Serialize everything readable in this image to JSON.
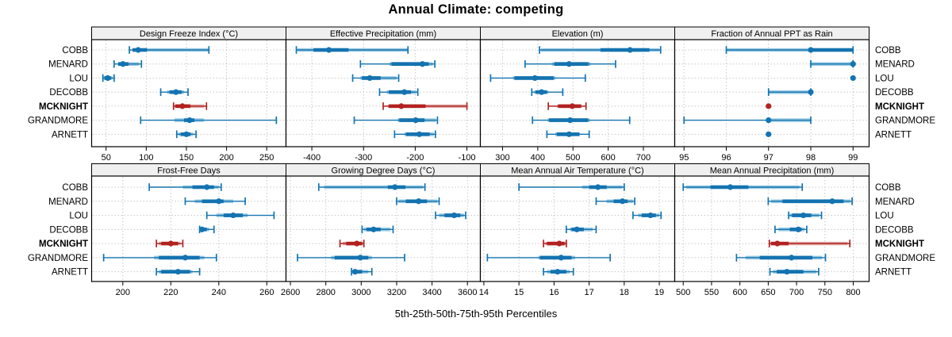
{
  "title": "Annual Climate: competing",
  "xlabel": "5th-25th-50th-75th-95th Percentiles",
  "sites": [
    "COBB",
    "MENARD",
    "LOU",
    "DECOBB",
    "MCKNIGHT",
    "GRANDMORE",
    "ARNETT"
  ],
  "highlight_site": "MCKNIGHT",
  "colors": {
    "main": "#1473B0",
    "light": "#9ACBE3",
    "highlight": "#B22220",
    "highlight_light": "#E0B0AC",
    "strip_bg": "#F0F0F0",
    "grid": "#C8C8C8",
    "border": "#000000",
    "text": "#000000"
  },
  "chart_data": {
    "type": "scatter",
    "style": "percentile-interval-dotplot",
    "legend": "thin capped line = 5th-95th, light band, dark band = 25th-75th, dot = median",
    "panels": [
      {
        "title": "Design Freeze Index (°C)",
        "slug": "design-freeze-index",
        "row": 0,
        "col": 0,
        "xlim": [
          32,
          274
        ],
        "ticks": [
          50,
          100,
          150,
          200,
          250
        ],
        "series": [
          {
            "site": "COBB",
            "q": [
              79,
              83,
              90,
              101,
              178
            ],
            "band": [
              83,
              178
            ]
          },
          {
            "site": "MENARD",
            "q": [
              60,
              65,
              71,
              78,
              94
            ],
            "band": [
              65,
              91
            ]
          },
          {
            "site": "LOU",
            "q": [
              46,
              48,
              52,
              56,
              60
            ],
            "band": [
              47,
              58
            ]
          },
          {
            "site": "DECOBB",
            "q": [
              118,
              129,
              137,
              144,
              152
            ],
            "band": [
              126,
              147
            ]
          },
          {
            "site": "MCKNIGHT",
            "q": [
              134,
              136,
              145,
              155,
              175
            ],
            "band": [
              136,
              172
            ]
          },
          {
            "site": "GRANDMORE",
            "q": [
              93,
              147,
              154,
              160,
              262
            ],
            "band": [
              135,
              172
            ]
          },
          {
            "site": "ARNETT",
            "q": [
              138,
              143,
              150,
              155,
              162
            ],
            "band": [
              140,
              158
            ]
          }
        ]
      },
      {
        "title": "Effective Precipitation (mm)",
        "slug": "effective-precipitation",
        "row": 0,
        "col": 1,
        "xlim": [
          -450,
          -74
        ],
        "ticks": [
          -400,
          -300,
          -200,
          -100
        ],
        "series": [
          {
            "site": "COBB",
            "q": [
              -430,
              -397,
              -367,
              -329,
              -214
            ],
            "band": [
              -428,
              -215
            ]
          },
          {
            "site": "MENARD",
            "q": [
              -306,
              -246,
              -186,
              -174,
              -162
            ],
            "band": [
              -250,
              -166
            ]
          },
          {
            "site": "LOU",
            "q": [
              -321,
              -303,
              -288,
              -267,
              -232
            ],
            "band": [
              -306,
              -236
            ]
          },
          {
            "site": "DECOBB",
            "q": [
              -269,
              -251,
              -221,
              -208,
              -195
            ],
            "band": [
              -255,
              -198
            ]
          },
          {
            "site": "MCKNIGHT",
            "q": [
              -262,
              -251,
              -227,
              -180,
              -100
            ],
            "band": [
              -253,
              -102
            ]
          },
          {
            "site": "GRANDMORE",
            "q": [
              -318,
              -231,
              -199,
              -182,
              -157
            ],
            "band": [
              -234,
              -160
            ]
          },
          {
            "site": "ARNETT",
            "q": [
              -240,
              -218,
              -192,
              -172,
              -161
            ],
            "band": [
              -221,
              -164
            ]
          }
        ]
      },
      {
        "title": "Elevation (m)",
        "slug": "elevation",
        "row": 0,
        "col": 2,
        "xlim": [
          237,
          789
        ],
        "ticks": [
          300,
          400,
          500,
          600,
          700
        ],
        "series": [
          {
            "site": "COBB",
            "q": [
              405,
              578,
              662,
              717,
              749
            ],
            "band": [
              409,
              746
            ]
          },
          {
            "site": "MENARD",
            "q": [
              364,
              447,
              489,
              544,
              621
            ],
            "band": [
              440,
              550
            ]
          },
          {
            "site": "LOU",
            "q": [
              266,
              334,
              392,
              445,
              535
            ],
            "band": [
              330,
              450
            ]
          },
          {
            "site": "DECOBB",
            "q": [
              383,
              394,
              411,
              426,
              471
            ],
            "band": [
              390,
              430
            ]
          },
          {
            "site": "MCKNIGHT",
            "q": [
              430,
              458,
              498,
              523,
              537
            ],
            "band": [
              455,
              525
            ]
          },
          {
            "site": "GRANDMORE",
            "q": [
              385,
              432,
              492,
              543,
              661
            ],
            "band": [
              428,
              548
            ]
          },
          {
            "site": "ARNETT",
            "q": [
              426,
              454,
              489,
              518,
              546
            ],
            "band": [
              450,
              520
            ]
          }
        ]
      },
      {
        "title": "Fraction of Annual PPT as Rain",
        "slug": "fraction-ppt-rain",
        "row": 0,
        "col": 3,
        "xlim": [
          94.78,
          99.38
        ],
        "ticks": [
          95,
          96,
          97,
          98,
          99
        ],
        "series": [
          {
            "site": "COBB",
            "q": [
              96,
              98,
              98,
              99,
              99
            ],
            "band": [
              96,
              99
            ]
          },
          {
            "site": "MENARD",
            "q": [
              98,
              99,
              99,
              99,
              99
            ],
            "band": [
              98,
              99
            ]
          },
          {
            "site": "LOU",
            "q": [
              99,
              99,
              99,
              99,
              99
            ],
            "band": [
              99,
              99
            ]
          },
          {
            "site": "DECOBB",
            "q": [
              97,
              98,
              98,
              98,
              98
            ],
            "band": [
              97,
              98
            ]
          },
          {
            "site": "MCKNIGHT",
            "q": [
              97,
              97,
              97,
              97,
              97
            ],
            "band": [
              97,
              97
            ]
          },
          {
            "site": "GRANDMORE",
            "q": [
              95,
              97,
              97,
              97,
              98
            ],
            "band": [
              97,
              98
            ]
          },
          {
            "site": "ARNETT",
            "q": [
              97,
              97,
              97,
              97,
              97
            ],
            "band": [
              97,
              97
            ]
          }
        ]
      },
      {
        "title": "Frost-Free Days",
        "slug": "frost-free-days",
        "row": 1,
        "col": 0,
        "xlim": [
          187,
          268
        ],
        "ticks": [
          200,
          220,
          240,
          260
        ],
        "series": [
          {
            "site": "COBB",
            "q": [
              211,
              229,
              235,
              238,
              241
            ],
            "band": [
              225,
              240
            ]
          },
          {
            "site": "MENARD",
            "q": [
              226,
              233,
              240,
              242,
              251
            ],
            "band": [
              230,
              246
            ]
          },
          {
            "site": "LOU",
            "q": [
              235,
              242,
              246,
              250,
              263
            ],
            "band": [
              239,
              252
            ]
          },
          {
            "site": "DECOBB",
            "q": [
              232,
              232,
              233,
              235,
              238
            ],
            "band": [
              232,
              236
            ]
          },
          {
            "site": "MCKNIGHT",
            "q": [
              214,
              216,
              220,
              223,
              225
            ],
            "band": [
              215,
              224
            ]
          },
          {
            "site": "GRANDMORE",
            "q": [
              192,
              215,
              226,
              232,
              239
            ],
            "band": [
              213,
              234
            ]
          },
          {
            "site": "ARNETT",
            "q": [
              214,
              216,
              223,
              228,
              232
            ],
            "band": [
              215,
              229
            ]
          }
        ]
      },
      {
        "title": "Growing Degree Days (°C)",
        "slug": "growing-degree-days",
        "row": 1,
        "col": 1,
        "xlim": [
          2575,
          3673
        ],
        "ticks": [
          2600,
          2800,
          3000,
          3200,
          3400,
          3600
        ],
        "series": [
          {
            "site": "COBB",
            "q": [
              2760,
              3150,
              3190,
              3250,
              3360
            ],
            "band": [
              2790,
              3350
            ]
          },
          {
            "site": "MENARD",
            "q": [
              3200,
              3252,
              3324,
              3372,
              3440
            ],
            "band": [
              3210,
              3430
            ]
          },
          {
            "site": "LOU",
            "q": [
              3420,
              3470,
              3525,
              3560,
              3590
            ],
            "band": [
              3440,
              3580
            ]
          },
          {
            "site": "DECOBB",
            "q": [
              3005,
              3030,
              3070,
              3110,
              3180
            ],
            "band": [
              3015,
              3165
            ]
          },
          {
            "site": "MCKNIGHT",
            "q": [
              2880,
              2915,
              2975,
              3005,
              3015
            ],
            "band": [
              2895,
              3010
            ]
          },
          {
            "site": "GRANDMORE",
            "q": [
              2640,
              2850,
              2995,
              3040,
              3245
            ],
            "band": [
              2830,
              3060
            ]
          },
          {
            "site": "ARNETT",
            "q": [
              2945,
              2955,
              2965,
              3005,
              3060
            ],
            "band": [
              2950,
              3040
            ]
          }
        ]
      },
      {
        "title": "Mean Annual Air Temperature (°C)",
        "slug": "mean-annual-air-temperature",
        "row": 1,
        "col": 2,
        "xlim": [
          13.9,
          19.44
        ],
        "ticks": [
          14,
          15,
          16,
          17,
          18,
          19
        ],
        "series": [
          {
            "site": "COBB",
            "q": [
              15.0,
              17.0,
              17.25,
              17.5,
              18.0
            ],
            "band": [
              16.8,
              17.95
            ]
          },
          {
            "site": "MENARD",
            "q": [
              17.2,
              17.7,
              17.95,
              18.1,
              18.3
            ],
            "band": [
              17.5,
              18.25
            ]
          },
          {
            "site": "LOU",
            "q": [
              18.25,
              18.5,
              18.75,
              18.9,
              19.05
            ],
            "band": [
              18.4,
              19.0
            ]
          },
          {
            "site": "DECOBB",
            "q": [
              16.35,
              16.5,
              16.65,
              16.85,
              17.2
            ],
            "band": [
              16.45,
              17.1
            ]
          },
          {
            "site": "MCKNIGHT",
            "q": [
              15.7,
              15.8,
              16.15,
              16.3,
              16.35
            ],
            "band": [
              15.75,
              16.33
            ]
          },
          {
            "site": "GRANDMORE",
            "q": [
              14.1,
              15.6,
              16.2,
              16.5,
              17.6
            ],
            "band": [
              15.55,
              16.6
            ]
          },
          {
            "site": "ARNETT",
            "q": [
              15.7,
              15.9,
              16.1,
              16.35,
              16.55
            ],
            "band": [
              15.8,
              16.45
            ]
          }
        ]
      },
      {
        "title": "Mean Annual Precipitation (mm)",
        "slug": "mean-annual-precipitation",
        "row": 1,
        "col": 3,
        "xlim": [
          485,
          828
        ],
        "ticks": [
          500,
          550,
          600,
          650,
          700,
          750,
          800
        ],
        "series": [
          {
            "site": "COBB",
            "q": [
              500,
              548,
              583,
              615,
              710
            ],
            "band": [
              505,
              705
            ]
          },
          {
            "site": "MENARD",
            "q": [
              650,
              675,
              763,
              783,
              798
            ],
            "band": [
              655,
              795
            ]
          },
          {
            "site": "LOU",
            "q": [
              686,
              692,
              712,
              726,
              744
            ],
            "band": [
              688,
              740
            ]
          },
          {
            "site": "DECOBB",
            "q": [
              662,
              688,
              703,
              709,
              718
            ],
            "band": [
              668,
              714
            ]
          },
          {
            "site": "MCKNIGHT",
            "q": [
              652,
              655,
              666,
              686,
              794
            ],
            "band": [
              654,
              790
            ]
          },
          {
            "site": "GRANDMORE",
            "q": [
              594,
              635,
              691,
              728,
              751
            ],
            "band": [
              610,
              745
            ]
          },
          {
            "site": "ARNETT",
            "q": [
              653,
              665,
              683,
              712,
              739
            ],
            "band": [
              658,
              735
            ]
          }
        ]
      }
    ]
  }
}
